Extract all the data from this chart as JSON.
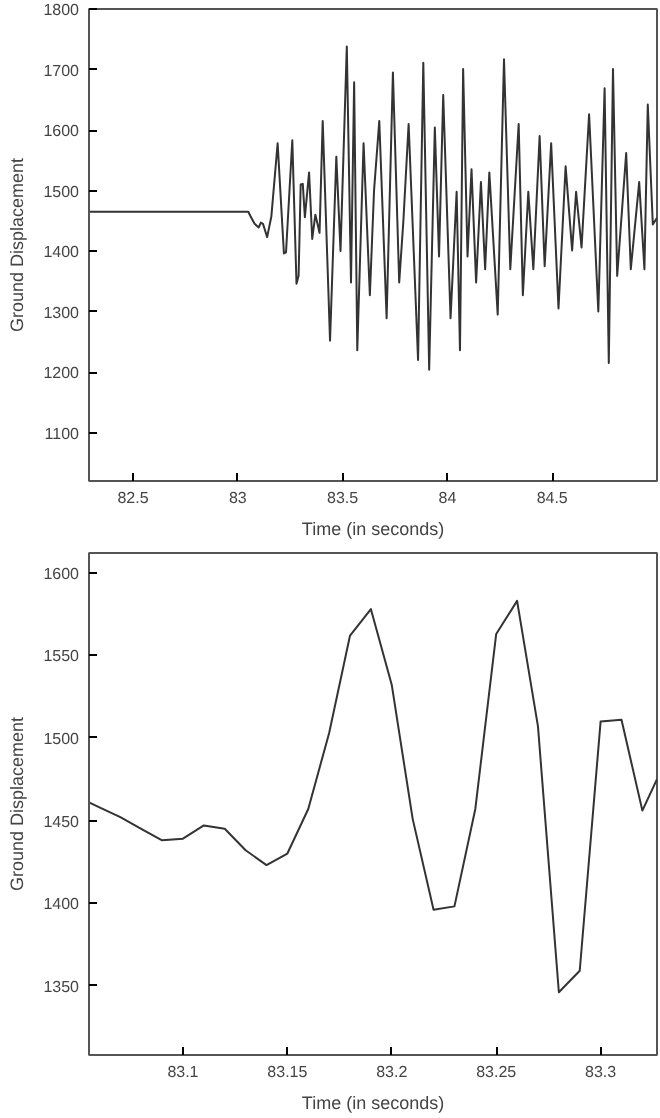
{
  "chart_data": [
    {
      "type": "line",
      "xlabel": "Time (in seconds)",
      "ylabel": "Ground Displacement",
      "x": [
        82.29,
        83.05,
        83.06,
        83.08,
        83.1,
        83.11,
        83.12,
        83.14,
        83.16,
        83.19,
        83.22,
        83.23,
        83.26,
        83.28,
        83.29,
        83.3,
        83.31,
        83.32,
        83.34,
        83.355,
        83.37,
        83.39,
        83.405,
        83.44,
        83.47,
        83.49,
        83.52,
        83.54,
        83.555,
        83.57,
        83.6,
        83.63,
        83.65,
        83.675,
        83.71,
        83.74,
        83.77,
        83.79,
        83.815,
        83.86,
        83.885,
        83.913,
        83.94,
        83.96,
        83.98,
        84.015,
        84.044,
        84.06,
        84.075,
        84.096,
        84.115,
        84.137,
        84.16,
        84.18,
        84.2,
        84.24,
        84.27,
        84.3,
        84.34,
        84.36,
        84.386,
        84.41,
        84.44,
        84.464,
        84.495,
        84.53,
        84.564,
        84.595,
        84.614,
        84.64,
        84.676,
        84.72,
        84.75,
        84.77,
        84.79,
        84.81,
        84.853,
        84.875,
        84.915,
        84.94,
        84.956,
        84.98,
        85.0
      ],
      "series": [
        {
          "color": "#333333",
          "values": [
            1465,
            1465,
            1458,
            1445,
            1439,
            1447,
            1445,
            1423,
            1457,
            1578,
            1396,
            1398,
            1583,
            1346,
            1359,
            1510,
            1511,
            1456,
            1530,
            1420,
            1460,
            1430,
            1615,
            1252,
            1556,
            1400,
            1738,
            1348,
            1679,
            1236,
            1578,
            1327,
            1500,
            1615,
            1289,
            1695,
            1348,
            1450,
            1610,
            1220,
            1711,
            1204,
            1604,
            1391,
            1658,
            1289,
            1498,
            1236,
            1701,
            1391,
            1535,
            1348,
            1514,
            1370,
            1530,
            1295,
            1717,
            1370,
            1610,
            1327,
            1498,
            1370,
            1590,
            1375,
            1578,
            1305,
            1540,
            1401,
            1498,
            1406,
            1626,
            1300,
            1669,
            1215,
            1701,
            1359,
            1562,
            1370,
            1514,
            1370,
            1642,
            1444,
            1455
          ]
        }
      ],
      "xlim": [
        82.29,
        85.0
      ],
      "ylim": [
        1020,
        1800
      ],
      "xticks": [
        82.5,
        83,
        83.5,
        84,
        84.5
      ],
      "yticks": [
        1100,
        1200,
        1300,
        1400,
        1500,
        1600,
        1700,
        1800
      ],
      "grid": false
    },
    {
      "type": "line",
      "xlabel": "Time (in seconds)",
      "ylabel": "Ground Displacement",
      "x": [
        83.055,
        83.06,
        83.07,
        83.08,
        83.09,
        83.1,
        83.11,
        83.12,
        83.13,
        83.14,
        83.15,
        83.16,
        83.17,
        83.18,
        83.19,
        83.2,
        83.21,
        83.22,
        83.23,
        83.24,
        83.25,
        83.26,
        83.27,
        83.28,
        83.29,
        83.3,
        83.31,
        83.32,
        83.327
      ],
      "series": [
        {
          "color": "#333333",
          "values": [
            1461,
            1458,
            1452,
            1445,
            1438,
            1439,
            1447,
            1445,
            1432,
            1423,
            1430,
            1457,
            1503,
            1562,
            1578,
            1532,
            1451,
            1396,
            1398,
            1457,
            1563,
            1583,
            1507,
            1346,
            1359,
            1510,
            1511,
            1456,
            1475
          ]
        }
      ],
      "xlim": [
        83.055,
        83.327
      ],
      "ylim": [
        1308,
        1612
      ],
      "xticks": [
        83.1,
        83.15,
        83.2,
        83.25,
        83.3
      ],
      "yticks": [
        1350,
        1400,
        1450,
        1500,
        1550,
        1600
      ],
      "grid": false
    }
  ]
}
